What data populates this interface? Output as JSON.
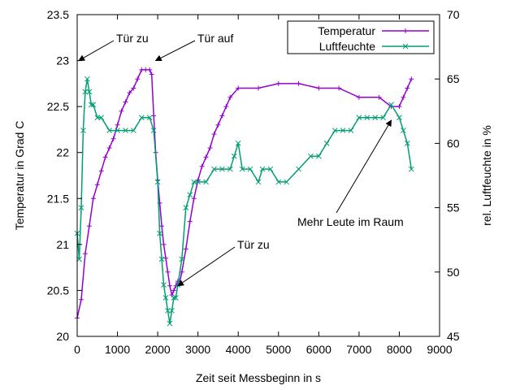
{
  "chart_data": {
    "type": "line",
    "xlabel": "Zeit seit Messbeginn in s",
    "ylabel": "Temperatur in Grad C",
    "y2label": "rel. Luftfeuchte in %",
    "xlim": [
      0,
      9000
    ],
    "ylim": [
      20,
      23.5
    ],
    "y2lim": [
      45,
      70
    ],
    "xticks": [
      "0",
      "1000",
      "2000",
      "3000",
      "4000",
      "5000",
      "6000",
      "7000",
      "8000",
      "9000"
    ],
    "yticks": [
      "20",
      "20.5",
      "21",
      "21.5",
      "22",
      "22.5",
      "23",
      "23.5"
    ],
    "y2ticks": [
      "45",
      "50",
      "55",
      "60",
      "65",
      "70"
    ],
    "grid": false,
    "legend": "top-right",
    "series": [
      {
        "name": "Temperatur",
        "axis": "y",
        "color": "#9400d3",
        "marker": "plus",
        "x": [
          0,
          100,
          200,
          300,
          400,
          500,
          600,
          700,
          800,
          900,
          1000,
          1100,
          1200,
          1300,
          1400,
          1500,
          1600,
          1700,
          1800,
          1850,
          1900,
          1950,
          2000,
          2050,
          2100,
          2150,
          2200,
          2250,
          2300,
          2350,
          2400,
          2450,
          2500,
          2550,
          2600,
          2700,
          2800,
          2900,
          3000,
          3100,
          3200,
          3300,
          3400,
          3500,
          3600,
          3700,
          3800,
          4000,
          4500,
          5000,
          5500,
          6000,
          6500,
          7000,
          7500,
          7800,
          8000,
          8100,
          8200,
          8300
        ],
        "y": [
          20.2,
          20.4,
          20.9,
          21.2,
          21.5,
          21.65,
          21.8,
          21.95,
          22.05,
          22.15,
          22.3,
          22.45,
          22.55,
          22.65,
          22.7,
          22.8,
          22.9,
          22.9,
          22.9,
          22.85,
          22.4,
          22.0,
          21.7,
          21.45,
          21.2,
          21.0,
          20.85,
          20.7,
          20.55,
          20.45,
          20.5,
          20.55,
          20.6,
          20.6,
          20.7,
          20.95,
          21.25,
          21.5,
          21.7,
          21.85,
          21.95,
          22.05,
          22.2,
          22.3,
          22.4,
          22.5,
          22.6,
          22.7,
          22.7,
          22.75,
          22.75,
          22.7,
          22.7,
          22.6,
          22.6,
          22.5,
          22.5,
          22.6,
          22.7,
          22.8
        ]
      },
      {
        "name": "Luftfeuchte",
        "axis": "y2",
        "color": "#009e73",
        "marker": "x",
        "x": [
          0,
          50,
          100,
          150,
          200,
          250,
          300,
          350,
          400,
          500,
          600,
          800,
          1000,
          1200,
          1400,
          1600,
          1800,
          1900,
          2000,
          2050,
          2100,
          2150,
          2200,
          2250,
          2300,
          2350,
          2400,
          2450,
          2500,
          2600,
          2700,
          2800,
          2900,
          3000,
          3200,
          3400,
          3600,
          3800,
          3900,
          4000,
          4100,
          4300,
          4500,
          4600,
          4800,
          5000,
          5200,
          5500,
          5800,
          6000,
          6200,
          6400,
          6600,
          6800,
          7000,
          7200,
          7400,
          7600,
          7800,
          8000,
          8100,
          8200,
          8300
        ],
        "y": [
          53,
          51,
          55,
          61,
          64,
          65,
          64,
          63,
          63,
          62,
          62,
          61,
          61,
          61,
          61,
          62,
          62,
          61,
          57,
          53,
          51,
          49,
          48,
          47,
          46,
          47,
          48,
          48,
          49,
          51,
          55,
          56,
          57,
          57,
          57,
          58,
          58,
          58,
          59,
          60,
          58,
          58,
          57,
          58,
          58,
          57,
          57,
          58,
          59,
          59,
          60,
          61,
          61,
          61,
          62,
          62,
          62,
          62,
          63,
          62,
          61,
          60,
          58
        ]
      }
    ],
    "annotations": [
      {
        "text": "Tür zu",
        "x": 0,
        "y": 23.0
      },
      {
        "text": "Tür auf",
        "x": 1950,
        "y": 23.0
      },
      {
        "text": "Tür zu",
        "x": 2500,
        "y": 20.55
      },
      {
        "text": "Mehr Leute im Raum",
        "x": 7800,
        "y": 22.35
      }
    ]
  }
}
